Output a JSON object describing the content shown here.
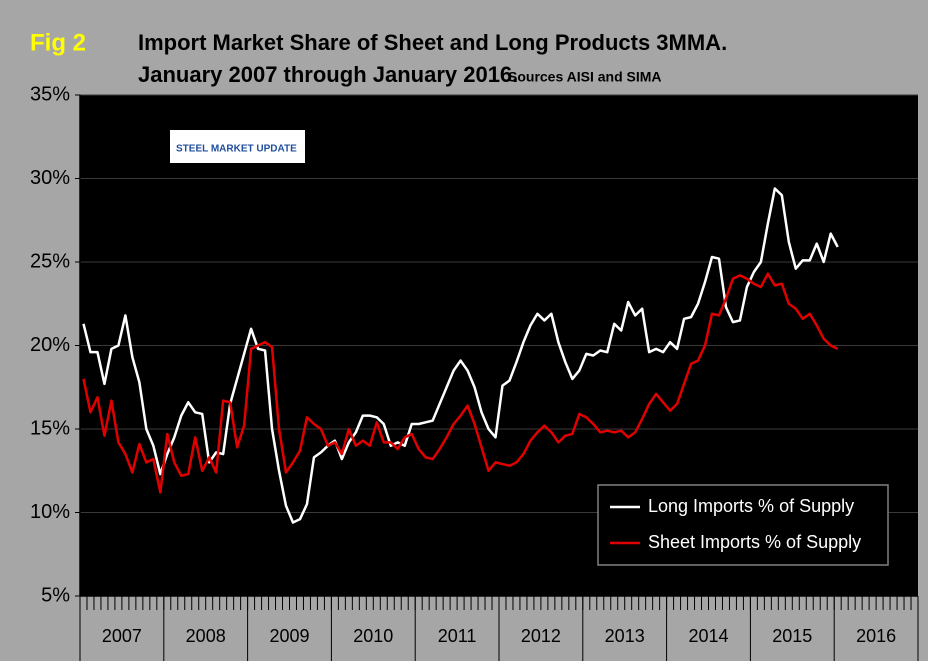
{
  "chart_data": {
    "type": "line",
    "fig_label": "Fig 2",
    "title": "Import Market Share of Sheet and Long Products 3MMA.",
    "subtitle": "January 2007 through January 2016.",
    "source": "Sources AISI and SIMA",
    "logo_text": "STEEL MARKET UPDATE",
    "year_labels": [
      "2007",
      "2008",
      "2009",
      "2010",
      "2011",
      "2012",
      "2013",
      "2014",
      "2015",
      "2016"
    ],
    "ylim": [
      5,
      35
    ],
    "yticks": [
      {
        "value": 5,
        "label": "5%"
      },
      {
        "value": 10,
        "label": "10%"
      },
      {
        "value": 15,
        "label": "15%"
      },
      {
        "value": 20,
        "label": "20%"
      },
      {
        "value": 25,
        "label": "25%"
      },
      {
        "value": 30,
        "label": "30%"
      },
      {
        "value": 35,
        "label": "35%"
      }
    ],
    "grid": true,
    "legend": "lower right",
    "series": [
      {
        "name": "Long Imports % of Supply",
        "color": "#ffffff",
        "values": [
          21.3,
          19.6,
          19.6,
          17.7,
          19.8,
          20,
          21.8,
          19.3,
          17.8,
          15,
          14,
          12.3,
          13.5,
          14.5,
          15.8,
          16.6,
          16,
          15.9,
          13,
          13.6,
          13.5,
          16.5,
          18,
          19.5,
          21,
          19.8,
          19.7,
          15,
          12.5,
          10.4,
          9.4,
          9.6,
          10.5,
          13.3,
          13.6,
          14,
          14.3,
          13.2,
          14.2,
          14.8,
          15.8,
          15.8,
          15.7,
          15.3,
          14,
          14.2,
          14,
          15.3,
          15.3,
          15.4,
          15.5,
          16.5,
          17.5,
          18.5,
          19.1,
          18.5,
          17.5,
          16,
          15,
          14.5,
          17.6,
          17.9,
          19,
          20.2,
          21.2,
          21.9,
          21.5,
          21.9,
          20.2,
          19,
          18,
          18.5,
          19.5,
          19.4,
          19.7,
          19.6,
          21.3,
          20.9,
          22.6,
          21.8,
          22.2,
          19.6,
          19.8,
          19.6,
          20.2,
          19.8,
          21.6,
          21.7,
          22.5,
          23.8,
          25.3,
          25.2,
          22.3,
          21.4,
          21.5,
          23.5,
          24.4,
          25,
          27.3,
          29.4,
          29,
          26.2,
          24.6,
          25.1,
          25.1,
          26.1,
          25,
          26.7,
          25.9
        ]
      },
      {
        "name": "Sheet Imports % of Supply",
        "color": "#e00000",
        "values": [
          18,
          16,
          16.9,
          14.6,
          16.7,
          14.2,
          13.5,
          12.4,
          14.1,
          13,
          13.2,
          11.2,
          14.7,
          13,
          12.2,
          12.3,
          14.5,
          12.5,
          13.3,
          12.4,
          16.7,
          16.6,
          13.9,
          15.2,
          19.8,
          20,
          20.2,
          19.9,
          15,
          12.4,
          13,
          13.7,
          15.7,
          15.3,
          15,
          14,
          14.2,
          13.5,
          15,
          14,
          14.3,
          14,
          15.4,
          14.2,
          14.2,
          13.8,
          14.5,
          14.7,
          13.8,
          13.3,
          13.2,
          13.8,
          14.5,
          15.3,
          15.8,
          16.4,
          15.3,
          13.9,
          12.5,
          13,
          12.9,
          12.8,
          13,
          13.5,
          14.3,
          14.8,
          15.2,
          14.8,
          14.2,
          14.6,
          14.7,
          15.9,
          15.7,
          15.3,
          14.8,
          14.9,
          14.8,
          14.9,
          14.5,
          14.8,
          15.6,
          16.5,
          17.1,
          16.6,
          16.1,
          16.5,
          17.7,
          18.9,
          19.1,
          20,
          21.9,
          21.8,
          22.8,
          24,
          24.2,
          24,
          23.7,
          23.5,
          24.3,
          23.6,
          23.7,
          22.5,
          22.2,
          21.6,
          21.9,
          21.2,
          20.4,
          20,
          19.8
        ]
      }
    ]
  }
}
